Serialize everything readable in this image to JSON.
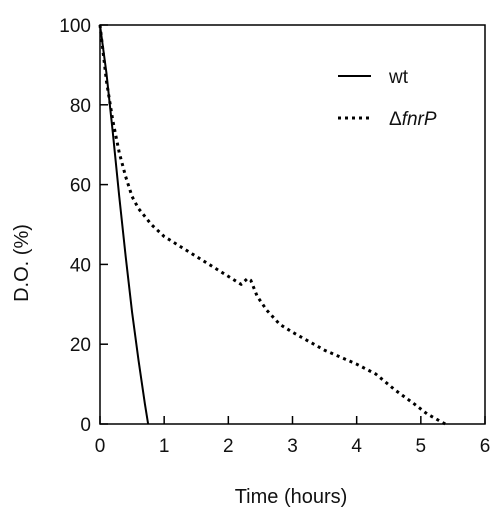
{
  "chart_data": {
    "type": "line",
    "xlabel": "Time (hours)",
    "ylabel": "D.O. (%)",
    "xlim": [
      0,
      6
    ],
    "ylim": [
      0,
      100
    ],
    "xticks": [
      0,
      1,
      2,
      3,
      4,
      5,
      6
    ],
    "yticks": [
      0,
      20,
      40,
      60,
      80,
      100
    ],
    "grid": false,
    "legend_position": "top-right",
    "series": [
      {
        "name": "wt",
        "style": "solid",
        "color": "#000000",
        "points": [
          [
            0,
            100
          ],
          [
            0.1,
            88
          ],
          [
            0.2,
            73
          ],
          [
            0.3,
            57
          ],
          [
            0.4,
            42
          ],
          [
            0.5,
            28
          ],
          [
            0.6,
            16
          ],
          [
            0.7,
            5
          ],
          [
            0.75,
            0
          ]
        ]
      },
      {
        "name": "ΔfnrP",
        "legend_prefix": "Δ",
        "legend_italic": "fnrP",
        "style": "dotted",
        "color": "#000000",
        "points": [
          [
            0,
            100
          ],
          [
            0.1,
            86
          ],
          [
            0.2,
            76
          ],
          [
            0.3,
            68
          ],
          [
            0.4,
            62
          ],
          [
            0.5,
            57
          ],
          [
            0.6,
            54
          ],
          [
            0.8,
            50
          ],
          [
            1.0,
            47
          ],
          [
            1.2,
            45
          ],
          [
            1.5,
            42
          ],
          [
            1.8,
            39
          ],
          [
            2.0,
            37
          ],
          [
            2.2,
            35
          ],
          [
            2.3,
            36.5
          ],
          [
            2.35,
            36
          ],
          [
            2.45,
            32
          ],
          [
            2.6,
            28.5
          ],
          [
            2.8,
            25
          ],
          [
            3.0,
            23
          ],
          [
            3.5,
            18.5
          ],
          [
            4.0,
            15
          ],
          [
            4.3,
            12.5
          ],
          [
            4.6,
            8.5
          ],
          [
            4.9,
            5
          ],
          [
            5.1,
            2.5
          ],
          [
            5.38,
            0
          ]
        ]
      }
    ]
  }
}
